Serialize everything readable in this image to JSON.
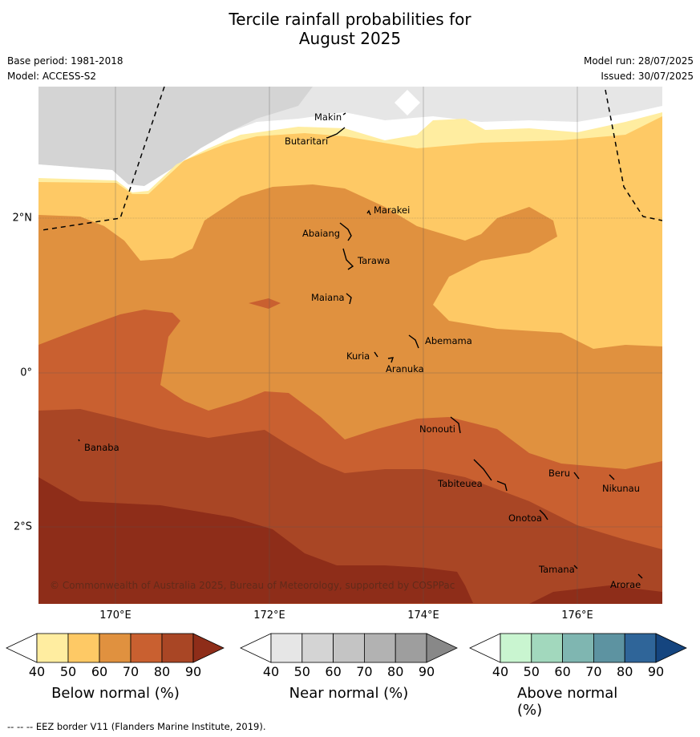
{
  "title_line1": "Tercile rainfall probabilities for",
  "title_line2": "August 2025",
  "base_period": "Base period: 1981-2018",
  "model": "Model: ACCESS-S2",
  "model_run": "Model run: 28/07/2025",
  "issued": "Issued: 30/07/2025",
  "copyright": "© Commonwealth of Australia 2025, Bureau of Meteorology, supported by COSPPac",
  "lon_labels": [
    "170°E",
    "172°E",
    "174°E",
    "176°E"
  ],
  "lat_labels": [
    "2°N",
    "0°",
    "2°S"
  ],
  "places": [
    "Makin",
    "Butaritari",
    "Marakei",
    "Abaiang",
    "Tarawa",
    "Maiana",
    "Abemama",
    "Kuria",
    "Aranuka",
    "Banaba",
    "Nonouti",
    "Beru",
    "Tabiteuea",
    "Nikunau",
    "Onotoa",
    "Tamana",
    "Arorae"
  ],
  "colorbars": {
    "below": {
      "title": "Below normal (%)",
      "ticks": [
        "40",
        "50",
        "60",
        "70",
        "80",
        "90"
      ],
      "colors": [
        "#ffffff",
        "#ffeda0",
        "#fec965",
        "#e0913f",
        "#c96030",
        "#a94625",
        "#8e2d19"
      ]
    },
    "near": {
      "title": "Near normal (%)",
      "ticks": [
        "40",
        "50",
        "60",
        "70",
        "80",
        "90"
      ],
      "colors": [
        "#ffffff",
        "#e6e6e6",
        "#d4d4d4",
        "#c4c4c4",
        "#b2b2b2",
        "#9e9e9e",
        "#888888"
      ]
    },
    "above": {
      "title": "Above normal (%)",
      "ticks": [
        "40",
        "50",
        "60",
        "70",
        "80",
        "90"
      ],
      "colors": [
        "#ffffff",
        "#c9f5d0",
        "#a2d8bd",
        "#7fb6b1",
        "#5d93a1",
        "#2f6599",
        "#15457f"
      ]
    }
  },
  "footer": "--  --  -- EEZ border V11 (Flanders Marine Institute, 2019)."
}
